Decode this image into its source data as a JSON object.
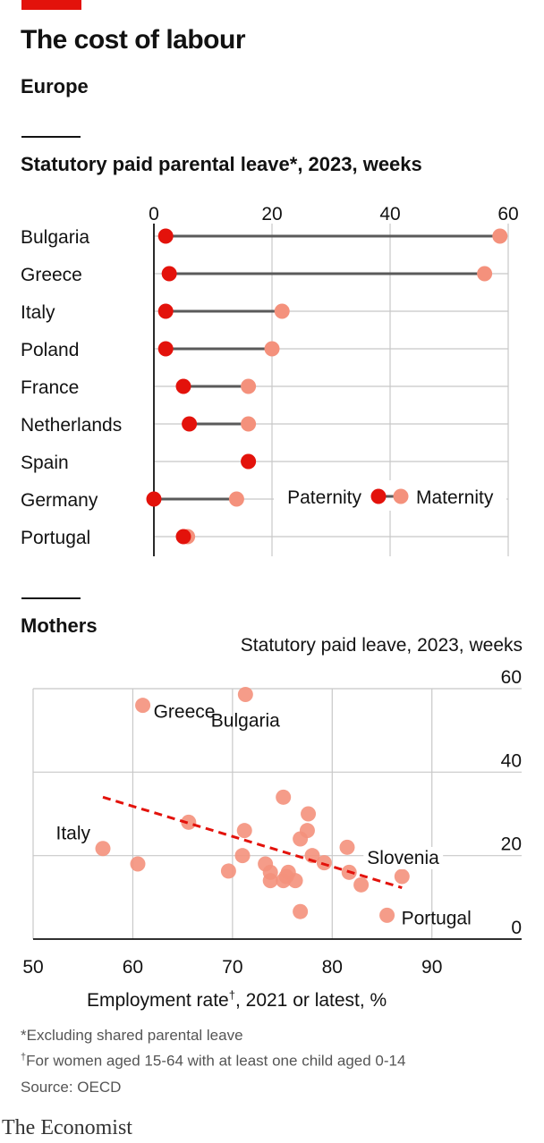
{
  "header": {
    "title": "The cost of labour",
    "subtitle": "Europe"
  },
  "colors": {
    "paternity": "#e3120b",
    "maternity": "#f4917c",
    "connector": "#5a5a5a",
    "trend": "#e3120b",
    "grid": "#c8c8c8"
  },
  "chart_data": [
    {
      "type": "dumbbell",
      "title": "Statutory paid parental leave*, 2023, weeks",
      "xlim": [
        0,
        60
      ],
      "xticks": [
        0,
        20,
        40,
        60
      ],
      "categories": [
        "Bulgaria",
        "Greece",
        "Italy",
        "Poland",
        "France",
        "Netherlands",
        "Spain",
        "Germany",
        "Portugal"
      ],
      "series": [
        {
          "name": "Paternity",
          "values": [
            2,
            2.6,
            2,
            2,
            5,
            6,
            16,
            0,
            5
          ]
        },
        {
          "name": "Maternity",
          "values": [
            58.6,
            56,
            21.7,
            20,
            16,
            16,
            16,
            14,
            5.7
          ]
        }
      ],
      "legend": {
        "paternity": "Paternity",
        "maternity": "Maternity",
        "placement": "right"
      },
      "grid": true
    },
    {
      "type": "scatter",
      "title": "Mothers",
      "ylabel": "Statutory paid leave, 2023, weeks",
      "xlabel": "Employment rate",
      "xlabel_mark": "†",
      "xlabel_suffix": ", 2021 or latest, %",
      "xlim": [
        50,
        99
      ],
      "ylim": [
        0,
        60
      ],
      "xticks": [
        50,
        60,
        70,
        80,
        90
      ],
      "yticks": [
        0,
        20,
        40,
        60
      ],
      "points": [
        {
          "x": 61,
          "y": 56,
          "label": "Greece"
        },
        {
          "x": 71.3,
          "y": 58.6,
          "label": "Bulgaria"
        },
        {
          "x": 57,
          "y": 21.7,
          "label": "Italy"
        },
        {
          "x": 87,
          "y": 15,
          "label": "Slovenia"
        },
        {
          "x": 85.5,
          "y": 5.7,
          "label": "Portugal"
        },
        {
          "x": 60.5,
          "y": 18,
          "label": ""
        },
        {
          "x": 65.6,
          "y": 28,
          "label": ""
        },
        {
          "x": 69.6,
          "y": 16.3,
          "label": ""
        },
        {
          "x": 71,
          "y": 20,
          "label": ""
        },
        {
          "x": 71.2,
          "y": 26,
          "label": ""
        },
        {
          "x": 73.3,
          "y": 18,
          "label": ""
        },
        {
          "x": 73.8,
          "y": 14,
          "label": ""
        },
        {
          "x": 73.8,
          "y": 16,
          "label": ""
        },
        {
          "x": 75.1,
          "y": 34,
          "label": ""
        },
        {
          "x": 75.1,
          "y": 14,
          "label": ""
        },
        {
          "x": 75.4,
          "y": 15,
          "label": ""
        },
        {
          "x": 75.6,
          "y": 16,
          "label": ""
        },
        {
          "x": 76.3,
          "y": 14,
          "label": ""
        },
        {
          "x": 76.8,
          "y": 6.6,
          "label": ""
        },
        {
          "x": 76.8,
          "y": 24,
          "label": ""
        },
        {
          "x": 77.5,
          "y": 26,
          "label": ""
        },
        {
          "x": 77.6,
          "y": 30,
          "label": ""
        },
        {
          "x": 78,
          "y": 20,
          "label": ""
        },
        {
          "x": 79.2,
          "y": 18.3,
          "label": ""
        },
        {
          "x": 81.5,
          "y": 22,
          "label": ""
        },
        {
          "x": 81.7,
          "y": 16,
          "label": ""
        },
        {
          "x": 82.9,
          "y": 13,
          "label": ""
        }
      ],
      "trend": {
        "x": [
          57,
          87
        ],
        "y": [
          34,
          12.3
        ],
        "style": "dashed"
      },
      "grid": true
    }
  ],
  "notes": {
    "line1": "*Excluding shared parental leave",
    "line2_mark": "†",
    "line2": "For women aged 15-64 with at least one child aged 0-14",
    "source": "Source: OECD"
  },
  "brand": "The Economist"
}
